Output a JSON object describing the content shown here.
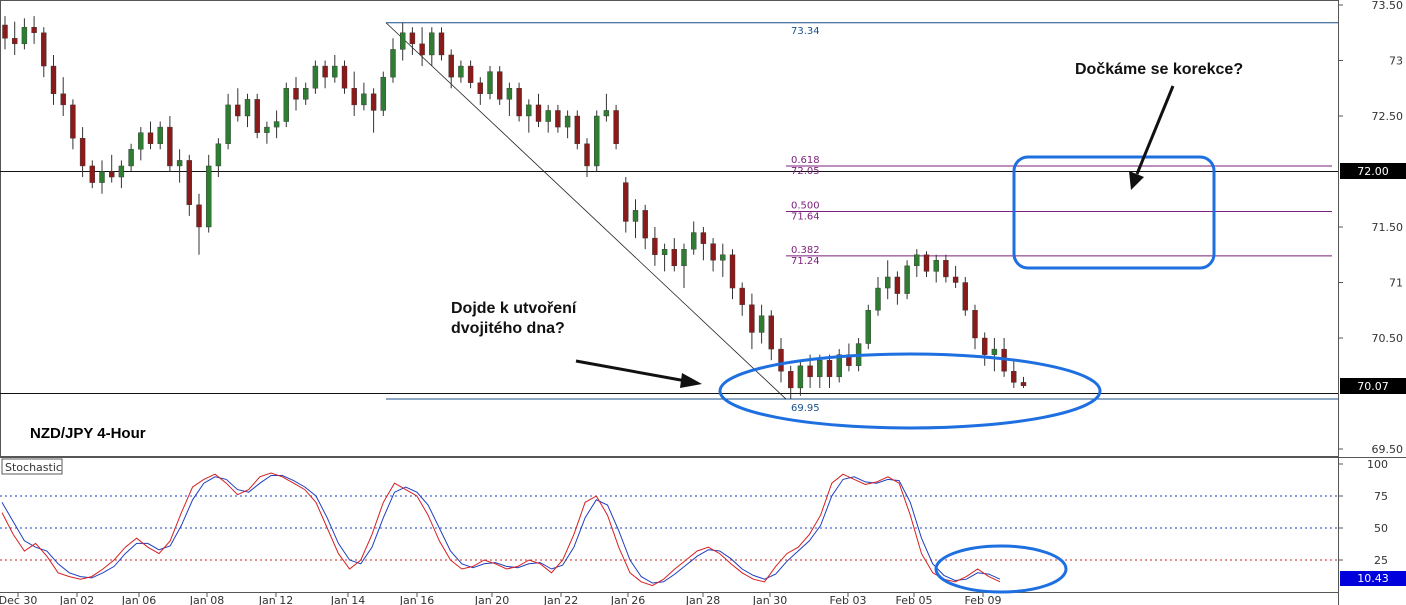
{
  "chart_data": {
    "type": "candlestick",
    "symbol_label": "NZD/JPY 4-Hour",
    "price_axis": {
      "ticks": [
        "73.50",
        "73",
        "72.50",
        "72.00",
        "71.50",
        "71",
        "70.50",
        "70.07",
        "69.50"
      ],
      "ylim": [
        69.5,
        73.5
      ]
    },
    "x_ticks": [
      "Dec 30",
      "Jan 02",
      "Jan 06",
      "Jan 08",
      "Jan 12",
      "Jan 14",
      "Jan 16",
      "Jan 20",
      "Jan 22",
      "Jan 26",
      "Jan 28",
      "Jan 30",
      "Feb 03",
      "Feb 05",
      "Feb 09"
    ],
    "price_levels": [
      {
        "name": "high-level",
        "value": 73.34
      },
      {
        "name": "resistance-72",
        "value": 72.0
      },
      {
        "name": "support-70",
        "value": 70.0
      },
      {
        "name": "low-level",
        "value": 69.95
      }
    ],
    "fibonacci": [
      {
        "ratio": "0.618",
        "price": "72.05",
        "value": 72.05
      },
      {
        "ratio": "0.500",
        "price": "71.64",
        "value": 71.64
      },
      {
        "ratio": "0.382",
        "price": "71.24",
        "value": 71.24
      }
    ],
    "level_labels": {
      "high": "73.34",
      "low": "69.95"
    },
    "current_price": "70.07",
    "candles": [
      [
        73.32,
        73.4,
        73.1,
        73.2
      ],
      [
        73.2,
        73.35,
        73.05,
        73.15
      ],
      [
        73.15,
        73.38,
        73.1,
        73.3
      ],
      [
        73.3,
        73.4,
        73.15,
        73.25
      ],
      [
        73.25,
        73.3,
        72.85,
        72.95
      ],
      [
        72.95,
        73.05,
        72.6,
        72.7
      ],
      [
        72.7,
        72.85,
        72.5,
        72.6
      ],
      [
        72.6,
        72.65,
        72.2,
        72.3
      ],
      [
        72.3,
        72.4,
        71.95,
        72.05
      ],
      [
        72.05,
        72.1,
        71.85,
        71.9
      ],
      [
        71.9,
        72.1,
        71.8,
        72.0
      ],
      [
        72.0,
        72.15,
        71.9,
        71.95
      ],
      [
        71.95,
        72.1,
        71.85,
        72.05
      ],
      [
        72.05,
        72.25,
        72.0,
        72.2
      ],
      [
        72.2,
        72.4,
        72.1,
        72.35
      ],
      [
        72.35,
        72.45,
        72.2,
        72.25
      ],
      [
        72.25,
        72.45,
        72.2,
        72.4
      ],
      [
        72.4,
        72.5,
        72.0,
        72.05
      ],
      [
        72.05,
        72.2,
        71.9,
        72.1
      ],
      [
        72.1,
        72.15,
        71.6,
        71.7
      ],
      [
        71.7,
        71.8,
        71.25,
        71.5
      ],
      [
        71.5,
        72.15,
        71.45,
        72.05
      ],
      [
        72.05,
        72.3,
        71.95,
        72.25
      ],
      [
        72.25,
        72.7,
        72.2,
        72.6
      ],
      [
        72.6,
        72.75,
        72.45,
        72.5
      ],
      [
        72.5,
        72.7,
        72.4,
        72.65
      ],
      [
        72.65,
        72.7,
        72.3,
        72.35
      ],
      [
        72.35,
        72.45,
        72.25,
        72.4
      ],
      [
        72.4,
        72.55,
        72.3,
        72.45
      ],
      [
        72.45,
        72.8,
        72.4,
        72.75
      ],
      [
        72.75,
        72.85,
        72.55,
        72.65
      ],
      [
        72.65,
        72.8,
        72.6,
        72.75
      ],
      [
        72.75,
        73.0,
        72.7,
        72.95
      ],
      [
        72.95,
        73.0,
        72.75,
        72.85
      ],
      [
        72.85,
        73.05,
        72.8,
        72.95
      ],
      [
        72.95,
        73.0,
        72.7,
        72.75
      ],
      [
        72.75,
        72.9,
        72.5,
        72.6
      ],
      [
        72.6,
        72.8,
        72.55,
        72.7
      ],
      [
        72.7,
        72.75,
        72.35,
        72.55
      ],
      [
        72.55,
        72.9,
        72.5,
        72.85
      ],
      [
        72.85,
        73.2,
        72.8,
        73.1
      ],
      [
        73.1,
        73.34,
        73.0,
        73.25
      ],
      [
        73.25,
        73.3,
        73.05,
        73.15
      ],
      [
        73.15,
        73.3,
        72.95,
        73.05
      ],
      [
        73.05,
        73.3,
        72.95,
        73.25
      ],
      [
        73.25,
        73.3,
        73.0,
        73.05
      ],
      [
        73.05,
        73.1,
        72.75,
        72.85
      ],
      [
        72.85,
        73.0,
        72.8,
        72.95
      ],
      [
        72.95,
        73.0,
        72.75,
        72.8
      ],
      [
        72.8,
        72.85,
        72.6,
        72.7
      ],
      [
        72.7,
        72.95,
        72.65,
        72.9
      ],
      [
        72.9,
        72.95,
        72.6,
        72.65
      ],
      [
        72.65,
        72.8,
        72.5,
        72.75
      ],
      [
        72.75,
        72.8,
        72.45,
        72.5
      ],
      [
        72.5,
        72.65,
        72.35,
        72.6
      ],
      [
        72.6,
        72.7,
        72.4,
        72.45
      ],
      [
        72.45,
        72.6,
        72.35,
        72.55
      ],
      [
        72.55,
        72.6,
        72.35,
        72.4
      ],
      [
        72.4,
        72.55,
        72.3,
        72.5
      ],
      [
        72.5,
        72.55,
        72.2,
        72.25
      ],
      [
        72.25,
        72.3,
        71.95,
        72.05
      ],
      [
        72.05,
        72.55,
        72.0,
        72.5
      ],
      [
        72.5,
        72.7,
        72.45,
        72.55
      ],
      [
        72.55,
        72.6,
        72.2,
        72.25
      ],
      [
        71.9,
        71.95,
        71.45,
        71.55
      ],
      [
        71.55,
        71.75,
        71.4,
        71.65
      ],
      [
        71.65,
        71.7,
        71.3,
        71.4
      ],
      [
        71.4,
        71.5,
        71.15,
        71.25
      ],
      [
        71.25,
        71.35,
        71.1,
        71.3
      ],
      [
        71.3,
        71.4,
        71.1,
        71.15
      ],
      [
        71.15,
        71.35,
        70.95,
        71.3
      ],
      [
        71.3,
        71.55,
        71.25,
        71.45
      ],
      [
        71.45,
        71.5,
        71.2,
        71.35
      ],
      [
        71.35,
        71.4,
        71.1,
        71.2
      ],
      [
        71.2,
        71.35,
        71.05,
        71.25
      ],
      [
        71.25,
        71.3,
        70.85,
        70.95
      ],
      [
        70.95,
        71.0,
        70.7,
        70.8
      ],
      [
        70.8,
        70.9,
        70.4,
        70.55
      ],
      [
        70.55,
        70.8,
        70.45,
        70.7
      ],
      [
        70.7,
        70.75,
        70.3,
        70.4
      ],
      [
        70.4,
        70.5,
        70.1,
        70.2
      ],
      [
        70.2,
        70.25,
        69.95,
        70.05
      ],
      [
        70.05,
        70.3,
        69.98,
        70.25
      ],
      [
        70.25,
        70.35,
        70.05,
        70.15
      ],
      [
        70.15,
        70.35,
        70.05,
        70.3
      ],
      [
        70.3,
        70.35,
        70.05,
        70.15
      ],
      [
        70.15,
        70.4,
        70.1,
        70.35
      ],
      [
        70.35,
        70.45,
        70.2,
        70.25
      ],
      [
        70.25,
        70.5,
        70.2,
        70.45
      ],
      [
        70.45,
        70.8,
        70.4,
        70.75
      ],
      [
        70.75,
        71.05,
        70.7,
        70.95
      ],
      [
        70.95,
        71.2,
        70.85,
        71.05
      ],
      [
        71.05,
        71.1,
        70.8,
        70.9
      ],
      [
        70.9,
        71.2,
        70.85,
        71.15
      ],
      [
        71.15,
        71.3,
        71.05,
        71.25
      ],
      [
        71.25,
        71.28,
        71.05,
        71.1
      ],
      [
        71.1,
        71.25,
        71.0,
        71.2
      ],
      [
        71.2,
        71.25,
        71.0,
        71.05
      ],
      [
        71.05,
        71.15,
        70.95,
        71.0
      ],
      [
        71.0,
        71.05,
        70.7,
        70.75
      ],
      [
        70.75,
        70.8,
        70.4,
        70.5
      ],
      [
        70.5,
        70.55,
        70.25,
        70.35
      ],
      [
        70.35,
        70.5,
        70.2,
        70.4
      ],
      [
        70.4,
        70.5,
        70.15,
        70.2
      ],
      [
        70.2,
        70.3,
        70.05,
        70.1
      ],
      [
        70.1,
        70.15,
        70.05,
        70.07
      ]
    ],
    "stochastic": {
      "label": "Stochastic",
      "ylim": [
        0,
        100
      ],
      "ticks": [
        "100",
        "75",
        "50",
        "25",
        "10.43"
      ],
      "levels": [
        75,
        50,
        25
      ],
      "current_value": "10.43",
      "k": [
        62,
        45,
        32,
        38,
        28,
        15,
        12,
        10,
        12,
        18,
        25,
        35,
        42,
        35,
        30,
        40,
        62,
        82,
        88,
        92,
        85,
        76,
        80,
        90,
        93,
        90,
        85,
        80,
        70,
        50,
        30,
        18,
        25,
        45,
        70,
        85,
        80,
        75,
        60,
        40,
        25,
        18,
        20,
        25,
        22,
        18,
        20,
        25,
        22,
        15,
        25,
        45,
        70,
        75,
        60,
        35,
        15,
        8,
        5,
        10,
        18,
        25,
        32,
        35,
        30,
        22,
        15,
        10,
        8,
        20,
        30,
        35,
        45,
        60,
        85,
        92,
        88,
        84,
        86,
        90,
        85,
        60,
        30,
        15,
        10,
        8,
        12,
        18,
        12,
        8
      ],
      "d": [
        70,
        55,
        40,
        35,
        32,
        22,
        15,
        12,
        11,
        15,
        20,
        30,
        38,
        38,
        33,
        36,
        52,
        72,
        85,
        90,
        88,
        80,
        78,
        85,
        91,
        91,
        87,
        82,
        75,
        58,
        38,
        25,
        22,
        35,
        58,
        78,
        82,
        78,
        68,
        50,
        32,
        22,
        19,
        22,
        23,
        20,
        19,
        22,
        23,
        18,
        21,
        35,
        58,
        72,
        68,
        48,
        25,
        12,
        7,
        8,
        14,
        21,
        28,
        33,
        32,
        26,
        18,
        13,
        10,
        14,
        24,
        32,
        40,
        52,
        75,
        88,
        90,
        86,
        85,
        88,
        87,
        70,
        42,
        22,
        13,
        9,
        10,
        15,
        14,
        10
      ]
    }
  },
  "annotations": {
    "double_bottom_question": [
      "Dojde k utvoření",
      "dvojitého dna?"
    ],
    "correction_question": "Dočkáme se korekce?"
  },
  "colors": {
    "bull": "#2e7d32",
    "bear": "#8b1a1a",
    "blue_line": "#1a4f8a",
    "fib": "#7a1f7a",
    "highlight": "#1e6fe0",
    "k_line": "#d62020",
    "d_line": "#1f3fbf",
    "tag_dark": "#000000",
    "tag_blue": "#0000dd"
  }
}
